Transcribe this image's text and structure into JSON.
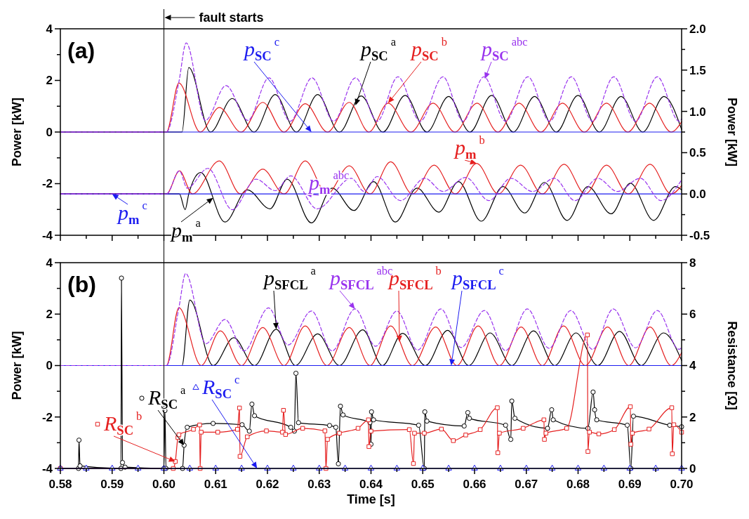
{
  "chart_data": [
    {
      "type": "line",
      "annotations": [
        "(a)"
      ],
      "ylabel": "Power [kW]",
      "y2label": "Power [kW]",
      "xlim": [
        0.58,
        0.7
      ],
      "xticks": [
        0.58,
        {
          "value": 0.585,
          "label": null
        },
        0.59,
        {
          "value": 0.595,
          "label": null
        },
        0.6,
        {
          "value": 0.605,
          "label": null
        },
        0.61,
        {
          "value": 0.615,
          "label": null
        },
        0.62,
        {
          "value": 0.625,
          "label": null
        },
        0.63,
        {
          "value": 0.635,
          "label": null
        },
        0.64,
        {
          "value": 0.645,
          "label": null
        },
        0.65,
        {
          "value": 0.655,
          "label": null
        },
        0.66,
        {
          "value": 0.665,
          "label": null
        },
        0.67,
        {
          "value": 0.675,
          "label": null
        },
        0.68,
        {
          "value": 0.685,
          "label": null
        },
        0.69,
        {
          "value": 0.695,
          "label": null
        },
        0.7
      ],
      "ylim": [
        -4,
        4
      ],
      "yticks": [
        -4,
        {
          "value": -3,
          "label": null
        },
        -2,
        {
          "value": -1,
          "label": null
        },
        0,
        {
          "value": 1,
          "label": null
        },
        2,
        {
          "value": 3,
          "label": null
        },
        4
      ],
      "y2lim": [
        -0.5,
        2.0
      ],
      "y2ticks": [
        -0.5,
        {
          "value": -0.25,
          "label": null
        },
        {
          "value": 0,
          "label": "0.0"
        },
        {
          "value": 0.25,
          "label": null
        },
        0.5,
        {
          "value": 0.75,
          "label": null
        },
        {
          "value": 1,
          "label": "1.0"
        },
        {
          "value": 1.25,
          "label": null
        },
        1.5,
        {
          "value": 1.75,
          "label": null
        },
        {
          "value": 2,
          "label": "2.0"
        }
      ],
      "tick_labels": "y",
      "legend": "bottom left",
      "ref_lines": [
        {
          "axis": "x",
          "value": 0.6,
          "label": "fault starts",
          "color": "#000000"
        }
      ],
      "series": [
        {
          "name": "p$_{SC}$$^{a}$",
          "color": "#000000",
          "x": [
            0.58,
            0.6035,
            0.6048,
            0.609,
            0.6132,
            0.6174,
            0.6215,
            0.6256,
            0.6297,
            0.6339,
            0.6381,
            0.6423,
            0.6466,
            0.6508,
            0.655,
            0.6591,
            0.6633,
            0.6675,
            0.6716,
            0.6758,
            0.68,
            0.6841,
            0.6883,
            0.6925,
            0.6966,
            0.7
          ],
          "values": [
            0,
            0,
            2.5,
            0,
            1.3,
            0,
            1.45,
            0,
            1.45,
            0,
            1.4,
            0,
            1.42,
            0,
            1.38,
            0,
            1.42,
            0,
            1.38,
            0,
            1.42,
            0,
            1.38,
            0,
            1.38,
            0.1
          ]
        },
        {
          "name": "p$_{SC}$$^{b}$",
          "color": "#e52020",
          "x": [
            0.58,
            0.6005,
            0.6029,
            0.607,
            0.6107,
            0.6149,
            0.6191,
            0.6232,
            0.6273,
            0.6316,
            0.6358,
            0.6396,
            0.6433,
            0.6477,
            0.652,
            0.6562,
            0.6605,
            0.6645,
            0.6686,
            0.6728,
            0.677,
            0.6812,
            0.6855,
            0.6896,
            0.6938,
            0.698,
            0.7
          ],
          "values": [
            0,
            0,
            1.9,
            0,
            0.95,
            0,
            1.15,
            0,
            1.1,
            0,
            1.15,
            0,
            1.12,
            0,
            1.12,
            0,
            1.12,
            0,
            1.12,
            0,
            1.12,
            0,
            1.12,
            0,
            1.12,
            0,
            0.4
          ]
        },
        {
          "name": "p$_{SC}$$^{c}$",
          "color": "#1c1cf0",
          "x": [
            0.58,
            0.7
          ],
          "values": [
            0,
            0
          ]
        },
        {
          "name": "p$_{SC}$$^{abc}$",
          "color": "#9933ee",
          "line_style": "dashed",
          "x": [
            0.58,
            0.6005,
            0.6029,
            0.6043,
            0.608,
            0.612,
            0.6162,
            0.6203,
            0.6244,
            0.6286,
            0.6328,
            0.637,
            0.6412,
            0.6452,
            0.6495,
            0.6539,
            0.6578,
            0.6618,
            0.666,
            0.6703,
            0.6745,
            0.6787,
            0.6828,
            0.6869,
            0.6911,
            0.6953,
            0.6995,
            0.7
          ],
          "values": [
            0,
            0,
            1.95,
            3.45,
            0.45,
            1.8,
            0.45,
            2.1,
            0.42,
            2.1,
            0.42,
            2.1,
            0.42,
            2.14,
            0.42,
            2.14,
            0.42,
            2.14,
            0.42,
            2.14,
            0.42,
            2.14,
            0.42,
            2.14,
            0.42,
            2.14,
            0.42,
            0.5
          ]
        },
        {
          "name": "p$_{m}$$^{a}$",
          "color": "#000000",
          "axis": "y2",
          "x": [
            0.58,
            0.603,
            0.6041,
            0.6048,
            0.6071,
            0.6118,
            0.6161,
            0.6205,
            0.6238,
            0.6285,
            0.6325,
            0.6367,
            0.6405,
            0.6447,
            0.6489,
            0.6531,
            0.6569,
            0.6613,
            0.6655,
            0.6697,
            0.6735,
            0.6779,
            0.6819,
            0.6864,
            0.6901,
            0.6946,
            0.6988,
            0.7
          ],
          "values": [
            0,
            0,
            -0.19,
            0,
            0.26,
            -0.34,
            0.05,
            -0.18,
            0.18,
            -0.35,
            0.07,
            -0.2,
            0.15,
            -0.34,
            0.07,
            -0.22,
            0.15,
            -0.33,
            0.09,
            -0.23,
            0.14,
            -0.32,
            0.09,
            -0.24,
            0.13,
            -0.32,
            0.09,
            0.05
          ]
        },
        {
          "name": "p$_{m}$$^{b}$",
          "color": "#e52020",
          "axis": "y2",
          "x": [
            0.58,
            0.6005,
            0.603,
            0.6055,
            0.6107,
            0.6148,
            0.6191,
            0.6232,
            0.6273,
            0.6315,
            0.6358,
            0.6398,
            0.6438,
            0.648,
            0.6522,
            0.6563,
            0.6604,
            0.6646,
            0.6689,
            0.6731,
            0.6773,
            0.6814,
            0.6855,
            0.6897,
            0.6939,
            0.698,
            0.7
          ],
          "values": [
            0,
            0,
            0.28,
            0,
            0.4,
            0,
            0.3,
            0,
            0.4,
            0,
            0.34,
            0,
            0.39,
            0,
            0.35,
            0,
            0.37,
            0,
            0.35,
            0,
            0.36,
            0,
            0.35,
            0,
            0.36,
            0,
            0.1
          ]
        },
        {
          "name": "p$_{m}$$^{c}$",
          "color": "#1c1cf0",
          "axis": "y2",
          "x": [
            0.58,
            0.7
          ],
          "values": [
            0,
            0
          ]
        },
        {
          "name": "p$_{m}$$^{abc}$",
          "color": "#9933ee",
          "axis": "y2",
          "line_style": "dashed",
          "x": [
            0.58,
            0.6005,
            0.603,
            0.6045,
            0.6085,
            0.6132,
            0.6178,
            0.6215,
            0.6245,
            0.6296,
            0.6362,
            0.6387,
            0.6412,
            0.6457,
            0.6504,
            0.6539,
            0.6583,
            0.6628,
            0.667,
            0.6712,
            0.6754,
            0.6794,
            0.6838,
            0.6876,
            0.692,
            0.696,
            0.7
          ],
          "values": [
            0,
            0,
            0.28,
            0.07,
            0.31,
            -0.19,
            0.18,
            0.04,
            0.22,
            -0.18,
            0.19,
            0.03,
            0.21,
            -0.08,
            0.19,
            0.03,
            0.2,
            -0.08,
            0.19,
            0.03,
            0.19,
            -0.08,
            0.19,
            0.03,
            0.19,
            -0.08,
            0.17
          ]
        }
      ]
    },
    {
      "type": "line",
      "annotations": [
        "(b)"
      ],
      "xlabel": "Time [s]",
      "ylabel": "Power [kW]",
      "y2label": "Resistance [Ω]",
      "xlim": [
        0.58,
        0.7
      ],
      "xticks": [
        0.58,
        {
          "value": 0.585,
          "label": null
        },
        0.59,
        {
          "value": 0.595,
          "label": null
        },
        {
          "value": 0.6,
          "label": "0.60"
        },
        {
          "value": 0.605,
          "label": null
        },
        0.61,
        {
          "value": 0.615,
          "label": null
        },
        0.62,
        {
          "value": 0.625,
          "label": null
        },
        0.63,
        {
          "value": 0.635,
          "label": null
        },
        0.64,
        {
          "value": 0.645,
          "label": null
        },
        0.65,
        {
          "value": 0.655,
          "label": null
        },
        0.66,
        {
          "value": 0.665,
          "label": null
        },
        0.67,
        {
          "value": 0.675,
          "label": null
        },
        0.68,
        {
          "value": 0.685,
          "label": null
        },
        0.69,
        {
          "value": 0.695,
          "label": null
        },
        {
          "value": 0.7,
          "label": "0.70"
        }
      ],
      "ylim": [
        -4,
        4
      ],
      "yticks": [
        -4,
        {
          "value": -3,
          "label": null
        },
        -2,
        {
          "value": -1,
          "label": null
        },
        0,
        {
          "value": 1,
          "label": null
        },
        2,
        {
          "value": 3,
          "label": null
        },
        4
      ],
      "y2lim": [
        0,
        8
      ],
      "y2ticks": [
        0,
        {
          "value": 1,
          "label": null
        },
        2,
        {
          "value": 3,
          "label": null
        },
        4,
        {
          "value": 5,
          "label": null
        },
        6,
        {
          "value": 7,
          "label": null
        },
        8
      ],
      "legend": "left",
      "ref_lines": [
        {
          "axis": "x",
          "value": 0.6,
          "color": "#000000"
        }
      ],
      "series": [
        {
          "name": "p$_{SFCL}$$^{a}$",
          "color": "#000000",
          "x": [
            0.58,
            0.6035,
            0.605,
            0.6095,
            0.6135,
            0.6175,
            0.6217,
            0.6254,
            0.6297,
            0.6339,
            0.6384,
            0.6422,
            0.6461,
            0.6505,
            0.6548,
            0.6589,
            0.663,
            0.6672,
            0.6714,
            0.6755,
            0.6796,
            0.6838,
            0.688,
            0.6922,
            0.6965,
            0.7
          ],
          "values": [
            0,
            0,
            2.55,
            0,
            1.08,
            0,
            1.41,
            0,
            1.23,
            0,
            1.39,
            0,
            1.25,
            0,
            1.37,
            0,
            1.27,
            0,
            1.35,
            0,
            1.27,
            0,
            1.33,
            0,
            1.27,
            0.2
          ]
        },
        {
          "name": "p$_{SFCL}$$^{b}$",
          "color": "#e52020",
          "x": [
            0.58,
            0.6005,
            0.6029,
            0.6072,
            0.6109,
            0.615,
            0.6191,
            0.6232,
            0.6273,
            0.6315,
            0.6358,
            0.6398,
            0.6438,
            0.648,
            0.6525,
            0.6566,
            0.6607,
            0.6648,
            0.669,
            0.6731,
            0.6772,
            0.6814,
            0.6857,
            0.6898,
            0.6939,
            0.698,
            0.7
          ],
          "values": [
            0,
            0,
            2.25,
            0,
            1.35,
            0,
            1.48,
            0,
            1.54,
            0,
            1.48,
            0,
            1.54,
            0,
            1.5,
            0,
            1.54,
            0,
            1.5,
            0,
            1.54,
            0,
            1.5,
            0,
            1.5,
            0,
            0.5
          ]
        },
        {
          "name": "p$_{SFCL}$$^{c}$",
          "color": "#1c1cf0",
          "x": [
            0.58,
            0.7
          ],
          "values": [
            0,
            0
          ]
        },
        {
          "name": "p$_{SFCL}$$^{abc}$",
          "color": "#9933ee",
          "line_style": "dashed",
          "x": [
            0.58,
            0.6005,
            0.6029,
            0.6042,
            0.6081,
            0.6118,
            0.6155,
            0.6202,
            0.624,
            0.6285,
            0.6325,
            0.6369,
            0.6409,
            0.645,
            0.649,
            0.6535,
            0.6574,
            0.6619,
            0.666,
            0.6702,
            0.6744,
            0.6786,
            0.6828,
            0.6868,
            0.6911,
            0.6953,
            0.6995,
            0.7
          ],
          "values": [
            0,
            0,
            2.25,
            3.58,
            0.85,
            1.79,
            0.57,
            2.24,
            0.8,
            2.12,
            0.57,
            2.2,
            0.75,
            2.12,
            0.6,
            2.2,
            0.7,
            2.14,
            0.58,
            2.2,
            0.67,
            2.14,
            0.63,
            2.2,
            0.69,
            2.14,
            0.63,
            0.7
          ]
        },
        {
          "name": "R$_{SC}$$^{a}$",
          "color": "#000000",
          "axis": "y2",
          "marker": "circle",
          "x": [
            0.58,
            0.5835,
            0.5836,
            0.5838,
            0.5917,
            0.5918,
            0.592,
            0.5925,
            0.6,
            0.6002,
            0.6004,
            0.6036,
            0.6039,
            0.6045,
            0.6095,
            0.6151,
            0.6165,
            0.617,
            0.6175,
            0.6245,
            0.6252,
            0.6255,
            0.626,
            0.632,
            0.6332,
            0.6337,
            0.6341,
            0.6346,
            0.6398,
            0.64,
            0.6401,
            0.6405,
            0.6492,
            0.6503,
            0.6504,
            0.6508,
            0.658,
            0.6587,
            0.659,
            0.666,
            0.667,
            0.6672,
            0.6678,
            0.6741,
            0.6749,
            0.6752,
            0.6819,
            0.6829,
            0.6832,
            0.6836,
            0.6895,
            0.6902,
            0.6907,
            0.6977,
            0.7
          ],
          "values": [
            0,
            0,
            1.1,
            0.1,
            0,
            7.4,
            0.23,
            0.05,
            0,
            2.25,
            0,
            0,
            0.9,
            1.6,
            1.75,
            1.7,
            1.45,
            2.5,
            2.05,
            1.6,
            1.45,
            3.7,
            1.78,
            1.67,
            1.6,
            0.18,
            2.42,
            2.08,
            1.78,
            0.94,
            2.2,
            1.89,
            1.68,
            0,
            2.2,
            1.84,
            1.65,
            2.17,
            1.95,
            1.68,
            1.13,
            2.62,
            1.95,
            1.56,
            2.28,
            1.89,
            1.56,
            2.97,
            2.28,
            1.89,
            1.68,
            0,
            2.03,
            1.68,
            1.62
          ]
        },
        {
          "name": "R$_{SC}$$^{b}$",
          "color": "#e52020",
          "axis": "y2",
          "marker": "square",
          "x": [
            0.58,
            0.6018,
            0.6022,
            0.6027,
            0.6029,
            0.6057,
            0.6069,
            0.607,
            0.6072,
            0.6104,
            0.6142,
            0.6146,
            0.6147,
            0.6161,
            0.6198,
            0.6229,
            0.6231,
            0.6235,
            0.6268,
            0.6311,
            0.6313,
            0.6316,
            0.6339,
            0.6375,
            0.6395,
            0.6396,
            0.64,
            0.6474,
            0.6482,
            0.6484,
            0.6503,
            0.6536,
            0.6559,
            0.6583,
            0.6611,
            0.6644,
            0.6645,
            0.6648,
            0.6694,
            0.6734,
            0.6735,
            0.6738,
            0.6778,
            0.6818,
            0.6819,
            0.6822,
            0.684,
            0.687,
            0.6901,
            0.6902,
            0.6905,
            0.6937,
            0.6981,
            0.6982,
            0.6985,
            0.7
          ],
          "values": [
            0,
            0,
            0.27,
            1.2,
            1.31,
            1.52,
            1.69,
            0,
            1.41,
            1.41,
            1.52,
            2.35,
            0.47,
            1.23,
            1.46,
            1.41,
            2.26,
            1.32,
            1.56,
            1.46,
            0,
            1.13,
            1.37,
            1.56,
            1.89,
            0.85,
            1.45,
            1.51,
            0.19,
            1.37,
            1.37,
            1.53,
            1.08,
            1.3,
            1.51,
            2.36,
            0.61,
            1.37,
            1.56,
            1.89,
            1.13,
            1.37,
            1.56,
            5.19,
            0.66,
            1.41,
            1.34,
            1.51,
            2.4,
            0.94,
            1.37,
            1.53,
            2.36,
            0.57,
            1.7,
            1.41
          ]
        },
        {
          "name": "R$_{SC}$$^{c}$",
          "color": "#1c1cf0",
          "axis": "y2",
          "marker": "triangle",
          "x": [
            0.58,
            0.585,
            0.59,
            0.595,
            0.6,
            0.605,
            0.61,
            0.615,
            0.62,
            0.625,
            0.63,
            0.635,
            0.64,
            0.645,
            0.65,
            0.655,
            0.66,
            0.665,
            0.67,
            0.675,
            0.68,
            0.685,
            0.69,
            0.695,
            0.7
          ],
          "values": [
            0,
            0,
            0,
            0,
            0,
            0,
            0,
            0,
            0,
            0,
            0,
            0,
            0,
            0,
            0,
            0,
            0,
            0,
            0,
            0,
            0,
            0,
            0,
            0,
            0
          ]
        }
      ]
    }
  ]
}
